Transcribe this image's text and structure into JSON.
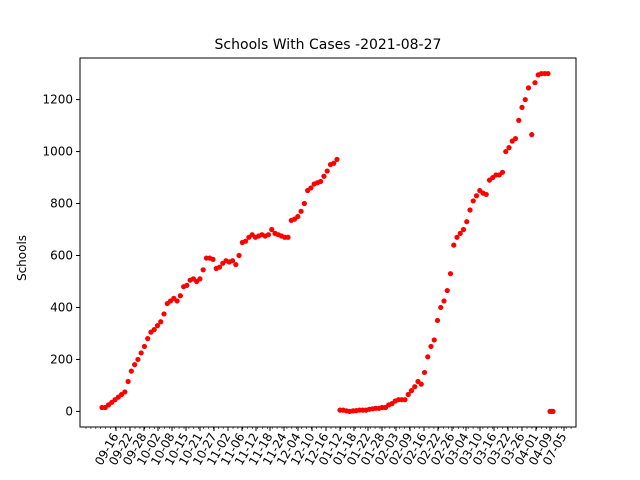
{
  "chart_data": {
    "type": "scatter",
    "title": "Schools With Cases -2021-08-27",
    "xlabel": "",
    "ylabel": "Schools",
    "ylim": [
      -60,
      1360
    ],
    "yticks": [
      0,
      200,
      400,
      600,
      800,
      1000,
      1200
    ],
    "grid": false,
    "marker_color": "#ff0000",
    "xtick_labels": [
      "09-16",
      "09-22",
      "09-28",
      "10-02",
      "10-08",
      "10-15",
      "10-21",
      "10-27",
      "11-02",
      "11-06",
      "11-12",
      "11-18",
      "11-24",
      "12-04",
      "12-10",
      "12-16",
      "01-12",
      "01-18",
      "01-22",
      "01-28",
      "02-03",
      "02-09",
      "02-16",
      "02-22",
      "02-26",
      "03-04",
      "03-10",
      "03-16",
      "03-22",
      "03-26",
      "04-01",
      "04-09",
      "07-05"
    ],
    "series": [
      {
        "values": [
          15,
          15,
          25,
          35,
          45,
          55,
          65,
          75,
          115,
          155,
          180,
          200,
          225,
          250,
          280,
          305,
          315,
          330,
          345,
          375,
          415,
          425,
          435,
          425,
          445,
          480,
          485,
          505,
          510,
          500,
          510,
          545,
          590,
          590,
          585,
          550,
          555,
          570,
          580,
          575,
          580,
          565,
          600,
          650,
          655,
          670,
          680,
          670,
          675,
          680,
          675,
          680,
          700,
          685,
          680,
          675,
          670,
          670,
          735,
          740,
          750,
          770,
          800,
          850,
          860,
          875,
          880,
          885,
          905,
          925,
          950,
          955,
          970,
          5,
          5,
          2,
          0,
          2,
          3,
          5,
          5,
          5,
          8,
          10,
          12,
          12,
          15,
          15,
          25,
          30,
          40,
          45,
          45,
          45,
          65,
          80,
          95,
          115,
          105,
          150,
          210,
          250,
          275,
          350,
          400,
          425,
          465,
          530,
          640,
          670,
          685,
          700,
          730,
          775,
          810,
          830,
          850,
          840,
          835,
          890,
          900,
          910,
          910,
          920,
          1000,
          1015,
          1040,
          1050,
          1120,
          1170,
          1200,
          1245,
          1065,
          1265,
          1295,
          1300,
          1300,
          1300,
          0,
          0,
          0
        ]
      }
    ]
  }
}
